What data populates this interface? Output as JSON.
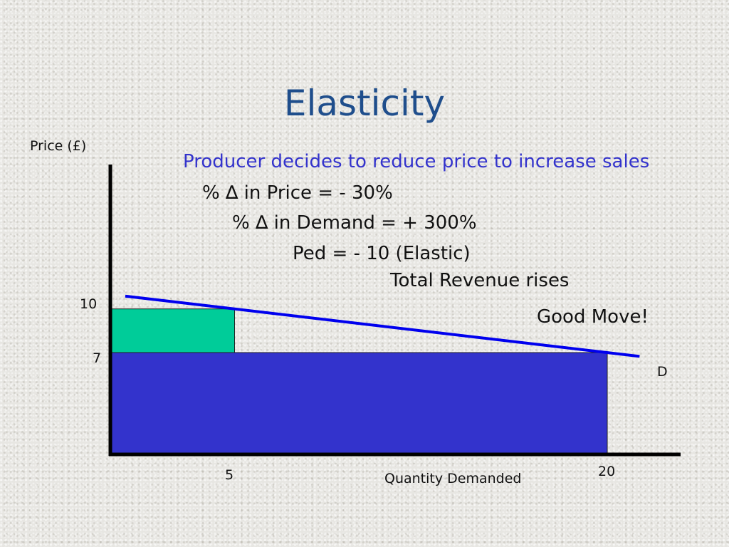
{
  "slide": {
    "title": "Elasticity",
    "headline": "Producer decides to reduce price to increase sales",
    "lines": [
      "% ∆ in Price =  - 30%",
      "% ∆ in Demand = + 300%",
      "Ped = - 10 (Elastic)",
      "Total Revenue rises"
    ],
    "verdict": "Good Move!"
  },
  "chart_data": {
    "type": "area",
    "ylabel": "Price (£)",
    "xlabel": "Quantity Demanded",
    "curve_label": "D",
    "y_ticks": [
      "10",
      "7"
    ],
    "x_ticks": [
      "5",
      "20"
    ],
    "points": [
      {
        "price": 10,
        "quantity": 5
      },
      {
        "price": 7,
        "quantity": 20
      }
    ],
    "revenue_rectangles": [
      {
        "price": 10,
        "quantity": 5,
        "color": "#00cc99"
      },
      {
        "price": 7,
        "quantity": 20,
        "color": "#3333cc"
      }
    ],
    "colors": {
      "axis": "#000000",
      "demand_line": "#0000ee"
    }
  }
}
